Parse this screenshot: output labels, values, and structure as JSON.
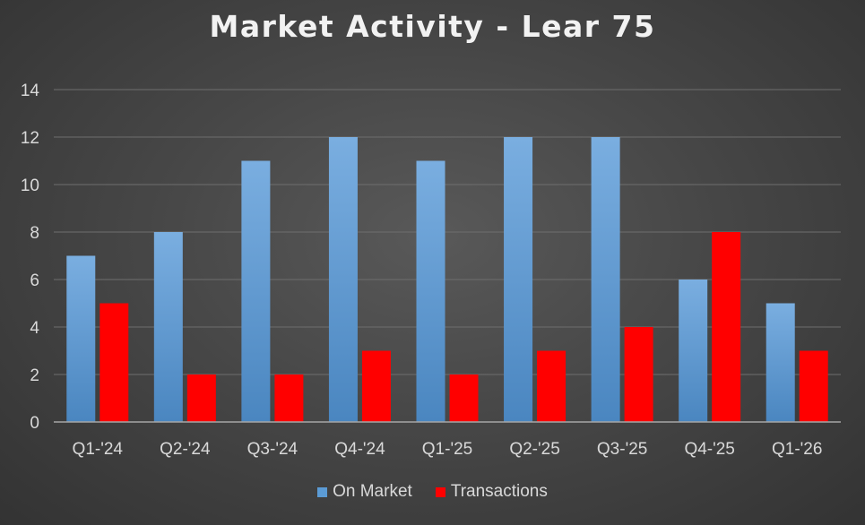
{
  "chart_data": {
    "type": "bar",
    "title": "Market Activity - Lear 75",
    "categories": [
      "Q1-'24",
      "Q2-'24",
      "Q3-'24",
      "Q4-'24",
      "Q1-'25",
      "Q2-'25",
      "Q3-'25",
      "Q4-'25",
      "Q1-'26"
    ],
    "series": [
      {
        "name": "On Market",
        "values": [
          7,
          8,
          11,
          12,
          11,
          12,
          12,
          6,
          5
        ],
        "color": "#5b9bd5"
      },
      {
        "name": "Transactions",
        "values": [
          5,
          2,
          2,
          3,
          2,
          3,
          4,
          8,
          3
        ],
        "color": "#ff0000"
      }
    ],
    "ylim": [
      0,
      14
    ],
    "yticks": [
      0,
      2,
      4,
      6,
      8,
      10,
      12,
      14
    ],
    "grid": true,
    "legend": "bottom",
    "background": "#474747",
    "text_color": "#d9d9d9",
    "grid_color": "#6e6e6e"
  }
}
